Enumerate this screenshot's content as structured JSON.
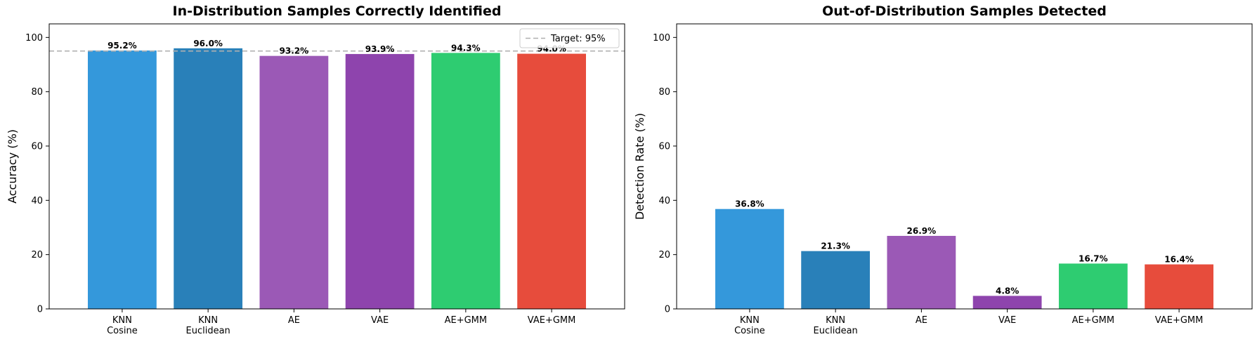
{
  "chart_data": [
    {
      "type": "bar",
      "title": "In-Distribution Samples Correctly Identified",
      "xlabel": "",
      "ylabel": "Accuracy (%)",
      "ylim": [
        0,
        105
      ],
      "yticks": [
        0,
        20,
        40,
        60,
        80,
        100
      ],
      "categories": [
        [
          "KNN",
          "Cosine"
        ],
        [
          "KNN",
          "Euclidean"
        ],
        [
          "AE"
        ],
        [
          "VAE"
        ],
        [
          "AE+GMM"
        ],
        [
          "VAE+GMM"
        ]
      ],
      "values": [
        95.2,
        96.0,
        93.2,
        93.9,
        94.3,
        94.0
      ],
      "value_labels": [
        "95.2%",
        "96.0%",
        "93.2%",
        "93.9%",
        "94.3%",
        "94.0%"
      ],
      "colors": [
        "#3498db",
        "#2980b9",
        "#9b59b6",
        "#8e44ad",
        "#2ecc71",
        "#e74c3c"
      ],
      "reference_line": {
        "value": 95,
        "label": "Target: 95%",
        "color": "#b0b0b0",
        "style": "dashed"
      },
      "legend": {
        "placement": "top-right"
      },
      "grid": false
    },
    {
      "type": "bar",
      "title": "Out-of-Distribution Samples Detected",
      "xlabel": "",
      "ylabel": "Detection Rate (%)",
      "ylim": [
        0,
        105
      ],
      "yticks": [
        0,
        20,
        40,
        60,
        80,
        100
      ],
      "categories": [
        [
          "KNN",
          "Cosine"
        ],
        [
          "KNN",
          "Euclidean"
        ],
        [
          "AE"
        ],
        [
          "VAE"
        ],
        [
          "AE+GMM"
        ],
        [
          "VAE+GMM"
        ]
      ],
      "values": [
        36.8,
        21.3,
        26.9,
        4.8,
        16.7,
        16.4
      ],
      "value_labels": [
        "36.8%",
        "21.3%",
        "26.9%",
        "4.8%",
        "16.7%",
        "16.4%"
      ],
      "colors": [
        "#3498db",
        "#2980b9",
        "#9b59b6",
        "#8e44ad",
        "#2ecc71",
        "#e74c3c"
      ],
      "grid": false
    }
  ]
}
